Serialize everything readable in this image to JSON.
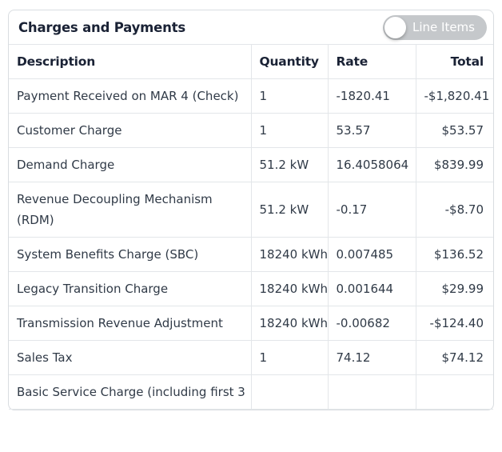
{
  "colors": {
    "accent_dark": "#1a2235",
    "body_text": "#303a47",
    "border": "#e3e6e9",
    "border_outer": "#d9dde1",
    "toggle_bg": "#c5c8cb",
    "toggle_knob": "#ffffff",
    "toggle_label": "#ffffff"
  },
  "card": {
    "title": "Charges and Payments",
    "toggle": {
      "label": "Line Items",
      "state": "off"
    },
    "table": {
      "headers": {
        "description": "Description",
        "quantity": "Quantity",
        "rate": "Rate",
        "total": "Total"
      },
      "rows": [
        {
          "description": "Payment Received on MAR 4 (Check)",
          "quantity": "1",
          "rate": "-1820.41",
          "total": "-$1,820.41"
        },
        {
          "description": "Customer Charge",
          "quantity": "1",
          "rate": "53.57",
          "total": "$53.57"
        },
        {
          "description": "Demand Charge",
          "quantity": "51.2 kW",
          "rate": "16.4058064",
          "total": "$839.99"
        },
        {
          "description": "Revenue Decoupling Mechanism\n(RDM)",
          "quantity": "51.2 kW",
          "rate": "-0.17",
          "total": "-$8.70"
        },
        {
          "description": "System Benefits Charge (SBC)",
          "quantity": "18240\nkWh",
          "rate": "0.007485",
          "total": "$136.52"
        },
        {
          "description": "Legacy Transition Charge",
          "quantity": "18240\nkWh",
          "rate": "0.001644",
          "total": "$29.99"
        },
        {
          "description": "Transmission Revenue Adjustment",
          "quantity": "18240\nkWh",
          "rate": "-0.00682",
          "total": "-$124.40"
        },
        {
          "description": "Sales Tax",
          "quantity": "1",
          "rate": "74.12",
          "total": "$74.12"
        },
        {
          "description": "Basic Service Charge (including first 3",
          "quantity": "",
          "rate": "",
          "total": ""
        }
      ]
    }
  }
}
